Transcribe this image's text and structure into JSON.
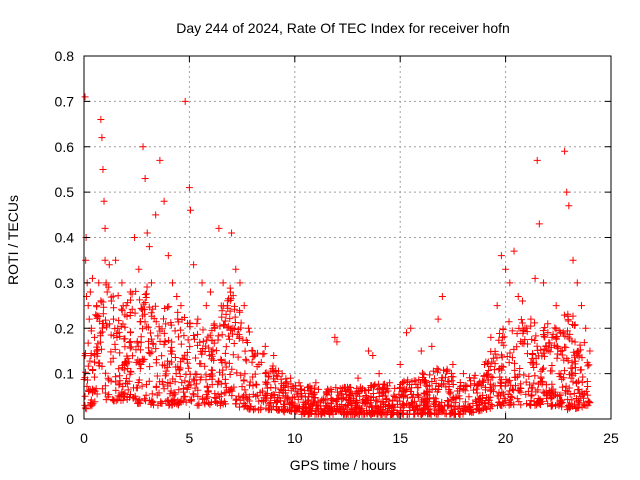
{
  "chart_data": {
    "type": "scatter",
    "title": "Day 244 of 2024, Rate Of TEC Index for receiver hofn",
    "xlabel": "GPS time / hours",
    "ylabel": "ROTI / TECUs",
    "xlim": [
      0,
      25
    ],
    "ylim": [
      0,
      0.8
    ],
    "xticks": [
      0,
      5,
      10,
      15,
      20,
      25
    ],
    "yticks": [
      0,
      0.1,
      0.2,
      0.3,
      0.4,
      0.5,
      0.6,
      0.7,
      0.8
    ],
    "xtick_labels": [
      "0",
      "5",
      "10",
      "15",
      "20",
      "25"
    ],
    "ytick_labels": [
      "0",
      "0.1",
      "0.2",
      "0.3",
      "0.4",
      "0.5",
      "0.6",
      "0.7",
      "0.8"
    ],
    "grid": true,
    "marker": "+",
    "color": "#ff0000",
    "series": [
      {
        "x": [
          0.05,
          0.08,
          0.1,
          0.12,
          0.15,
          0.2,
          0.25,
          0.3,
          0.35,
          0.4,
          0.5,
          0.6,
          0.7,
          0.8,
          0.85,
          0.9,
          0.95,
          1.0,
          1.0,
          1.05,
          1.1,
          1.2,
          1.3,
          1.4,
          1.5,
          1.6,
          1.8,
          2.0,
          2.2,
          2.4,
          2.6,
          2.8,
          2.9,
          3.0,
          3.1,
          3.2,
          3.4,
          3.6,
          3.8,
          4.0,
          4.2,
          4.4,
          4.6,
          4.8,
          5.0,
          5.05,
          5.2,
          5.4,
          5.6,
          5.8,
          6.0,
          6.2,
          6.4,
          6.6,
          6.8,
          7.0,
          7.2,
          7.4,
          7.6,
          7.8,
          8.0,
          8.3,
          8.6,
          9.0,
          9.4,
          9.8,
          10.2,
          10.6,
          11.0,
          11.5,
          11.9,
          12.0,
          12.5,
          13.0,
          13.5,
          13.7,
          14.0,
          14.5,
          15.0,
          15.3,
          15.5,
          16.0,
          16.5,
          16.8,
          17.0,
          17.5,
          18.0,
          18.5,
          19.0,
          19.3,
          19.6,
          19.8,
          20.0,
          20.2,
          20.4,
          20.6,
          20.8,
          21.0,
          21.2,
          21.4,
          21.5,
          21.6,
          21.8,
          22.0,
          22.2,
          22.4,
          22.6,
          22.8,
          22.9,
          23.0,
          23.2,
          23.4,
          23.6,
          23.8,
          24.0
        ],
        "y": [
          0.71,
          0.35,
          0.4,
          0.27,
          0.3,
          0.25,
          0.22,
          0.28,
          0.2,
          0.31,
          0.18,
          0.25,
          0.3,
          0.66,
          0.62,
          0.55,
          0.48,
          0.42,
          0.35,
          0.3,
          0.28,
          0.34,
          0.26,
          0.22,
          0.35,
          0.2,
          0.3,
          0.25,
          0.28,
          0.4,
          0.33,
          0.6,
          0.53,
          0.41,
          0.38,
          0.3,
          0.45,
          0.57,
          0.48,
          0.36,
          0.3,
          0.27,
          0.25,
          0.7,
          0.51,
          0.46,
          0.34,
          0.22,
          0.3,
          0.25,
          0.28,
          0.2,
          0.42,
          0.3,
          0.25,
          0.41,
          0.33,
          0.3,
          0.25,
          0.2,
          0.15,
          0.12,
          0.16,
          0.14,
          0.1,
          0.09,
          0.08,
          0.07,
          0.08,
          0.06,
          0.18,
          0.17,
          0.07,
          0.09,
          0.15,
          0.14,
          0.1,
          0.08,
          0.12,
          0.19,
          0.2,
          0.15,
          0.16,
          0.22,
          0.27,
          0.12,
          0.1,
          0.09,
          0.12,
          0.18,
          0.25,
          0.36,
          0.33,
          0.3,
          0.37,
          0.27,
          0.26,
          0.2,
          0.22,
          0.31,
          0.57,
          0.43,
          0.3,
          0.21,
          0.18,
          0.25,
          0.19,
          0.59,
          0.5,
          0.47,
          0.35,
          0.3,
          0.25,
          0.2,
          0.15
        ]
      }
    ],
    "dense_band": [
      {
        "x": 0,
        "lo": 0.02,
        "hi": 0.25
      },
      {
        "x": 1,
        "lo": 0.04,
        "hi": 0.3
      },
      {
        "x": 2,
        "lo": 0.04,
        "hi": 0.28
      },
      {
        "x": 3,
        "lo": 0.03,
        "hi": 0.3
      },
      {
        "x": 4,
        "lo": 0.03,
        "hi": 0.25
      },
      {
        "x": 5,
        "lo": 0.03,
        "hi": 0.22
      },
      {
        "x": 6,
        "lo": 0.03,
        "hi": 0.2
      },
      {
        "x": 7,
        "lo": 0.03,
        "hi": 0.3
      },
      {
        "x": 8,
        "lo": 0.02,
        "hi": 0.18
      },
      {
        "x": 9,
        "lo": 0.02,
        "hi": 0.12
      },
      {
        "x": 10,
        "lo": 0.01,
        "hi": 0.08
      },
      {
        "x": 11,
        "lo": 0.01,
        "hi": 0.07
      },
      {
        "x": 12,
        "lo": 0.01,
        "hi": 0.07
      },
      {
        "x": 13,
        "lo": 0.01,
        "hi": 0.07
      },
      {
        "x": 14,
        "lo": 0.01,
        "hi": 0.08
      },
      {
        "x": 15,
        "lo": 0.01,
        "hi": 0.08
      },
      {
        "x": 16,
        "lo": 0.01,
        "hi": 0.1
      },
      {
        "x": 17,
        "lo": 0.01,
        "hi": 0.12
      },
      {
        "x": 18,
        "lo": 0.01,
        "hi": 0.08
      },
      {
        "x": 19,
        "lo": 0.02,
        "hi": 0.12
      },
      {
        "x": 20,
        "lo": 0.03,
        "hi": 0.22
      },
      {
        "x": 21,
        "lo": 0.03,
        "hi": 0.22
      },
      {
        "x": 22,
        "lo": 0.03,
        "hi": 0.2
      },
      {
        "x": 23,
        "lo": 0.02,
        "hi": 0.25
      },
      {
        "x": 24,
        "lo": 0.03,
        "hi": 0.15
      }
    ]
  }
}
